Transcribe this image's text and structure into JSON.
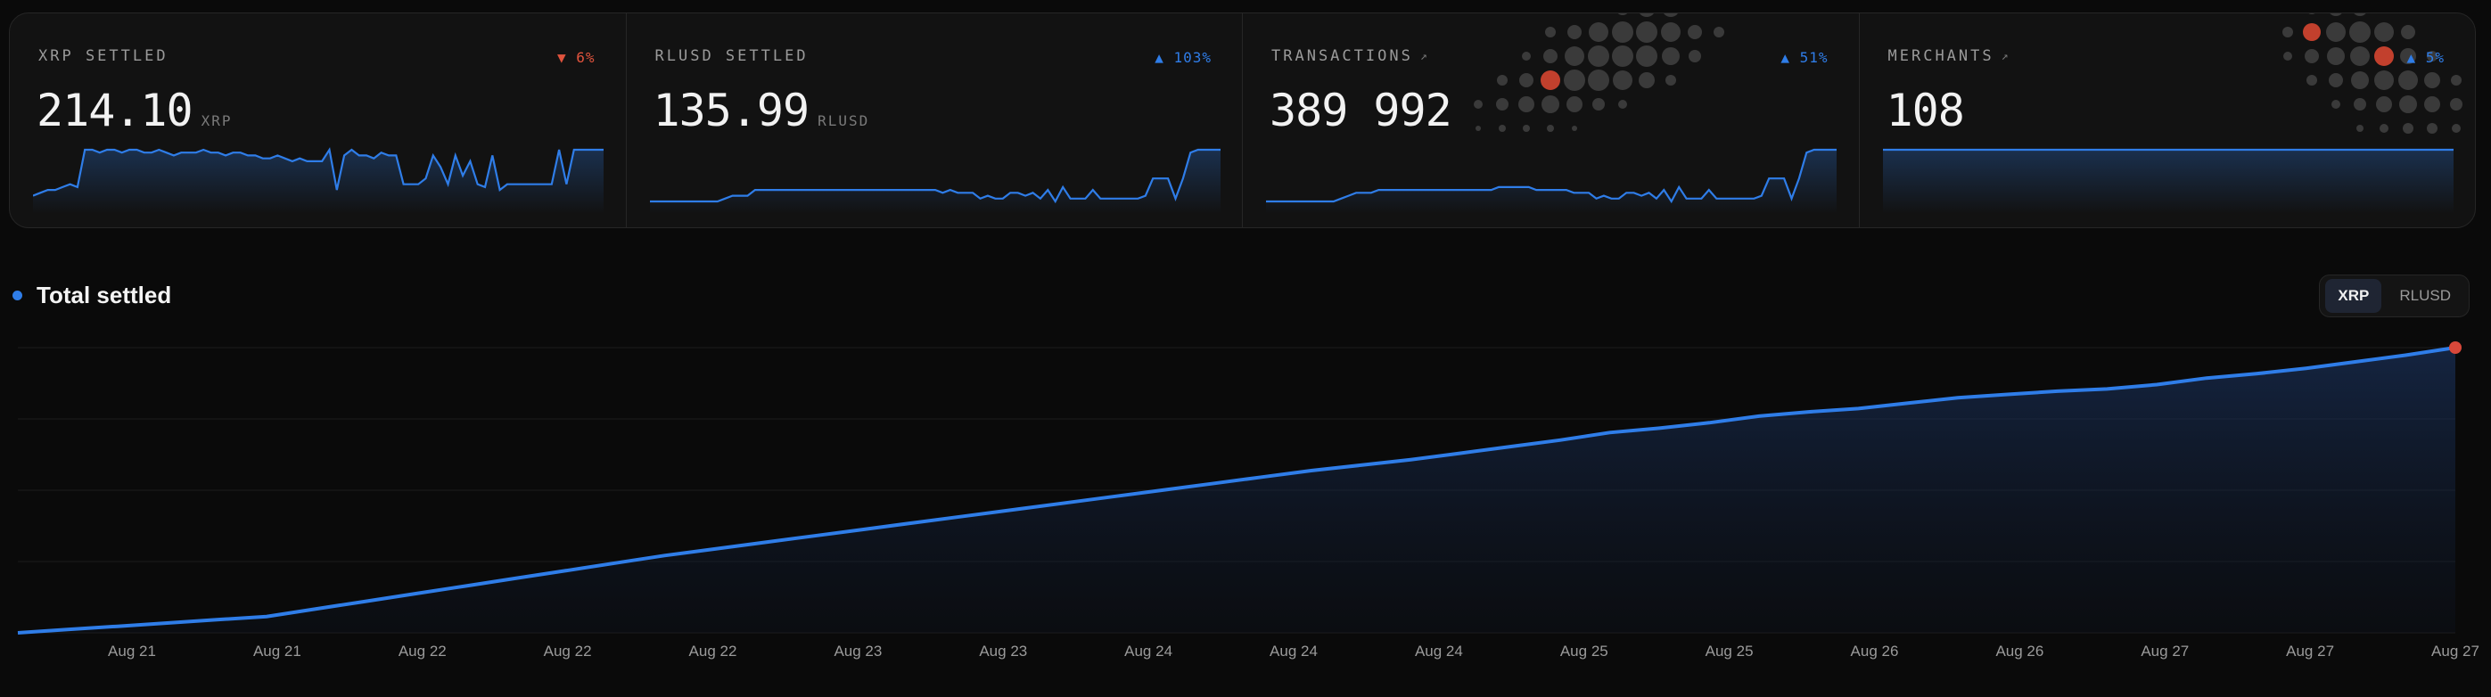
{
  "cards": [
    {
      "title": "XRP SETTLED",
      "has_link": false,
      "change": "▼ 6%",
      "change_dir": "down",
      "value": "214.10",
      "unit": "XRP",
      "spark": [
        2,
        3,
        4,
        4,
        5,
        6,
        5,
        18,
        18,
        17,
        18,
        18,
        17,
        18,
        18,
        17,
        17,
        18,
        17,
        16,
        17,
        17,
        17,
        18,
        17,
        17,
        16,
        17,
        17,
        16,
        16,
        15,
        15,
        16,
        15,
        14,
        15,
        14,
        14,
        14,
        18,
        4,
        16,
        18,
        16,
        16,
        15,
        17,
        16,
        16,
        6,
        6,
        6,
        8,
        16,
        12,
        6,
        16,
        9,
        14,
        6,
        5,
        16,
        4,
        6,
        6,
        6,
        6,
        6,
        6,
        6,
        18,
        6,
        18,
        18,
        18,
        18,
        18
      ]
    },
    {
      "title": "RLUSD SETTLED",
      "has_link": false,
      "change": "▲ 103%",
      "change_dir": "up",
      "value": "135.99",
      "unit": "RLUSD",
      "spark": [
        0,
        0,
        0,
        0,
        0,
        0,
        0,
        0,
        0,
        0,
        1,
        2,
        2,
        2,
        4,
        4,
        4,
        4,
        4,
        4,
        4,
        4,
        4,
        4,
        4,
        4,
        4,
        4,
        4,
        4,
        4,
        4,
        4,
        4,
        4,
        4,
        4,
        4,
        4,
        3,
        4,
        3,
        3,
        3,
        1,
        2,
        1,
        1,
        3,
        3,
        2,
        3,
        1,
        4,
        0,
        5,
        1,
        1,
        1,
        4,
        1,
        1,
        1,
        1,
        1,
        1,
        2,
        8,
        8,
        8,
        1,
        8,
        17,
        18,
        18,
        18,
        18
      ]
    },
    {
      "title": "TRANSACTIONS",
      "has_link": true,
      "change": "▲ 51%",
      "change_dir": "up",
      "value": "389 992",
      "unit": "",
      "spark": [
        0,
        0,
        0,
        0,
        0,
        0,
        0,
        0,
        0,
        0,
        1,
        2,
        3,
        3,
        3,
        4,
        4,
        4,
        4,
        4,
        4,
        4,
        4,
        4,
        4,
        4,
        4,
        4,
        4,
        4,
        4,
        5,
        5,
        5,
        5,
        5,
        4,
        4,
        4,
        4,
        4,
        3,
        3,
        3,
        1,
        2,
        1,
        1,
        3,
        3,
        2,
        3,
        1,
        4,
        0,
        5,
        1,
        1,
        1,
        4,
        1,
        1,
        1,
        1,
        1,
        1,
        2,
        8,
        8,
        8,
        1,
        8,
        17,
        18,
        18,
        18,
        18
      ]
    },
    {
      "title": "MERCHANTS",
      "has_link": true,
      "change": "▲ 5%",
      "change_dir": "up",
      "value": "108",
      "unit": "",
      "spark": [
        18,
        18,
        18,
        18,
        18,
        18,
        18,
        18,
        18,
        18,
        18,
        18,
        18,
        18,
        18,
        18,
        18,
        18,
        18,
        18,
        18,
        18,
        18,
        18,
        18,
        18,
        18,
        18,
        18,
        18,
        18,
        18,
        18,
        18,
        18,
        18,
        18,
        18,
        18,
        18,
        18,
        18,
        18,
        18,
        18,
        18,
        18,
        18,
        18,
        18,
        18,
        18,
        18,
        18,
        18,
        18,
        18,
        18,
        18,
        18,
        18,
        18,
        18,
        18,
        18,
        18,
        18,
        18,
        18,
        18,
        18,
        18,
        18,
        18,
        18,
        18,
        18
      ]
    }
  ],
  "section": {
    "title": "Total settled"
  },
  "toggle": {
    "options": [
      "XRP",
      "RLUSD"
    ],
    "active": "XRP"
  },
  "colors": {
    "accent": "#2f7de8",
    "down": "#e0533d",
    "marker": "#d9483a"
  },
  "chart_data": {
    "type": "area",
    "series": [
      {
        "values": [
          0,
          3,
          6,
          9,
          12,
          15,
          22,
          29,
          36,
          43,
          50,
          57,
          64,
          71,
          77,
          83,
          89,
          95,
          101,
          107,
          113,
          119,
          125,
          131,
          137,
          143,
          149,
          154,
          159,
          165,
          171,
          177,
          184,
          188,
          193,
          199,
          203,
          206,
          211,
          216,
          219,
          222,
          224,
          228,
          234,
          238,
          243,
          249,
          255,
          262
        ]
      }
    ],
    "x_labels": [
      "Aug 21",
      "Aug 21",
      "Aug 22",
      "Aug 22",
      "Aug 22",
      "Aug 23",
      "Aug 23",
      "Aug 24",
      "Aug 24",
      "Aug 24",
      "Aug 25",
      "Aug 25",
      "Aug 26",
      "Aug 26",
      "Aug 27",
      "Aug 27",
      "Aug 27"
    ],
    "grid": true,
    "legend": "none"
  }
}
